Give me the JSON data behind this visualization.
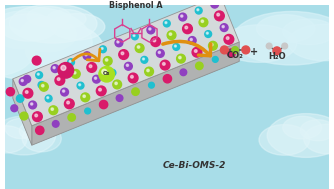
{
  "bg_color": "#a8dde8",
  "cloud_color": "#d8f2f8",
  "label_catalyst": "Ce-Bi-OMS-2",
  "label_bpa": "Bisphenol A",
  "label_co2": "CO₂",
  "label_h2o": "H₂O",
  "label_plus": "+",
  "atom_mn": "#d91a6a",
  "atom_bi": "#9040c0",
  "atom_ce": "#98d020",
  "atom_o_cyan": "#20c0d0",
  "prism_top": "#d8dada",
  "prism_side": "#b0b2b2",
  "prism_edge": "#909090",
  "arrow_color": "#e09010",
  "o2_color": "#a8e020",
  "radical_color": "#d01868",
  "molecule_pink": "#d84090",
  "molecule_green": "#88cc28",
  "text_color": "#333333"
}
